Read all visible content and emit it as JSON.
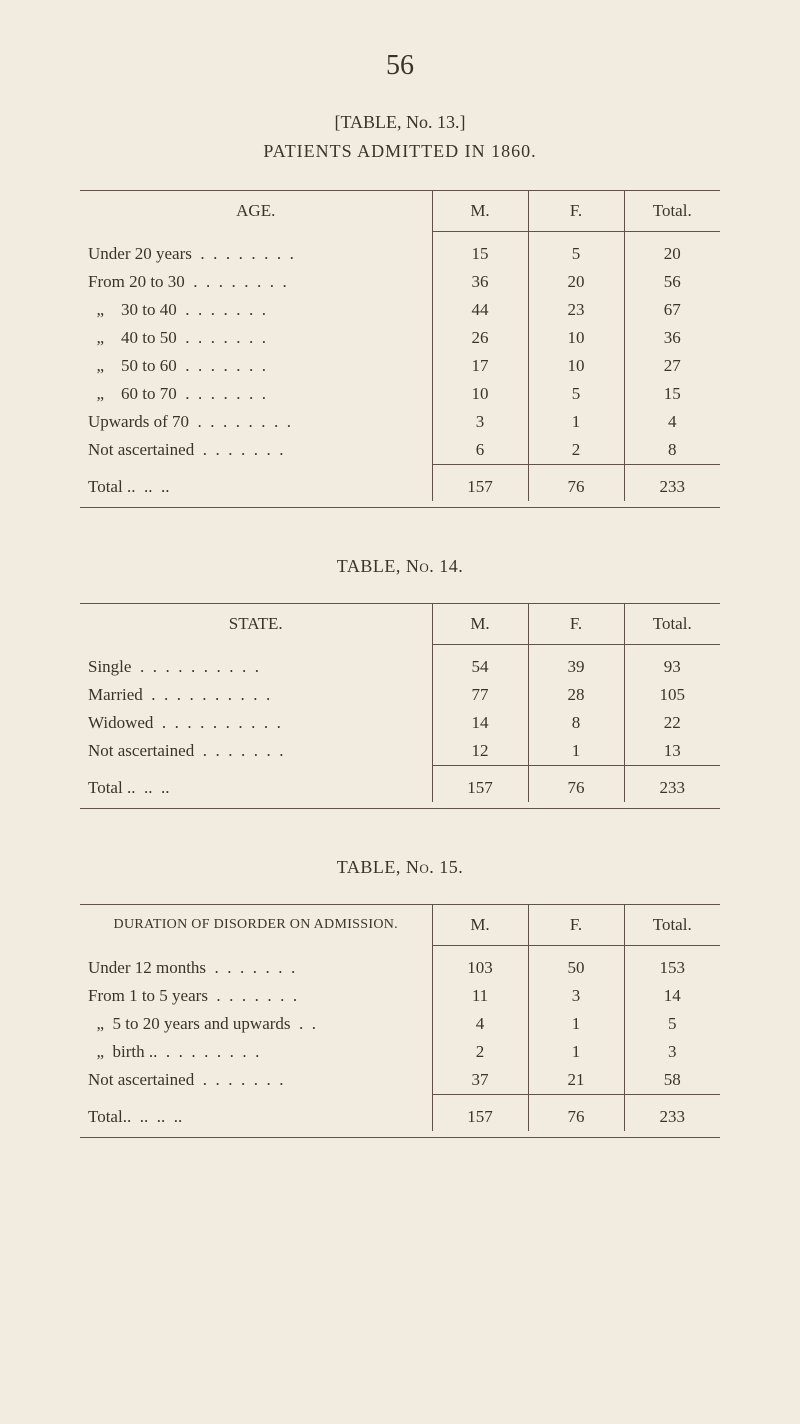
{
  "page_number": "56",
  "header": {
    "table_label": "[TABLE, No. 13.]",
    "title": "PATIENTS ADMITTED IN 1860."
  },
  "table13": {
    "col_heading": "AGE.",
    "cols": [
      "M.",
      "F.",
      "Total."
    ],
    "rows": [
      {
        "label": "Under 20 years",
        "m": "15",
        "f": "5",
        "t": "20"
      },
      {
        "label": "From 20 to 30",
        "m": "36",
        "f": "20",
        "t": "56"
      },
      {
        "label": "  „    30 to 40",
        "m": "44",
        "f": "23",
        "t": "67"
      },
      {
        "label": "  „    40 to 50",
        "m": "26",
        "f": "10",
        "t": "36"
      },
      {
        "label": "  „    50 to 60",
        "m": "17",
        "f": "10",
        "t": "27"
      },
      {
        "label": "  „    60 to 70",
        "m": "10",
        "f": "5",
        "t": "15"
      },
      {
        "label": "Upwards of 70",
        "m": "3",
        "f": "1",
        "t": "4"
      },
      {
        "label": "Not ascertained",
        "m": "6",
        "f": "2",
        "t": "8"
      }
    ],
    "total_label": "Total ..  ..  ..",
    "total": {
      "m": "157",
      "f": "76",
      "t": "233"
    }
  },
  "table14": {
    "heading": "TABLE, No. 14.",
    "col_heading": "STATE.",
    "cols": [
      "M.",
      "F.",
      "Total."
    ],
    "rows": [
      {
        "label": "Single",
        "m": "54",
        "f": "39",
        "t": "93"
      },
      {
        "label": "Married",
        "m": "77",
        "f": "28",
        "t": "105"
      },
      {
        "label": "Widowed",
        "m": "14",
        "f": "8",
        "t": "22"
      },
      {
        "label": "Not ascertained",
        "m": "12",
        "f": "1",
        "t": "13"
      }
    ],
    "total_label": "Total ..  ..  ..",
    "total": {
      "m": "157",
      "f": "76",
      "t": "233"
    }
  },
  "table15": {
    "heading": "TABLE, No. 15.",
    "col_heading": "DURATION OF DISORDER ON ADMISSION.",
    "cols": [
      "M.",
      "F.",
      "Total."
    ],
    "rows": [
      {
        "label": "Under 12 months",
        "m": "103",
        "f": "50",
        "t": "153"
      },
      {
        "label": "From 1 to 5 years",
        "m": "11",
        "f": "3",
        "t": "14"
      },
      {
        "label": "  „  5 to 20 years and upwards",
        "m": "4",
        "f": "1",
        "t": "5"
      },
      {
        "label": "  „  birth ..",
        "m": "2",
        "f": "1",
        "t": "3"
      },
      {
        "label": "Not ascertained",
        "m": "37",
        "f": "21",
        "t": "58"
      }
    ],
    "total_label": "Total..  ..  ..  ..",
    "total": {
      "m": "157",
      "f": "76",
      "t": "233"
    }
  },
  "style": {
    "background_color": "#f2ece0",
    "text_color": "#3b3228",
    "rule_color": "#5e5346",
    "body_fontsize": 17,
    "pagenum_fontsize": 28,
    "font_family": "Times New Roman"
  }
}
